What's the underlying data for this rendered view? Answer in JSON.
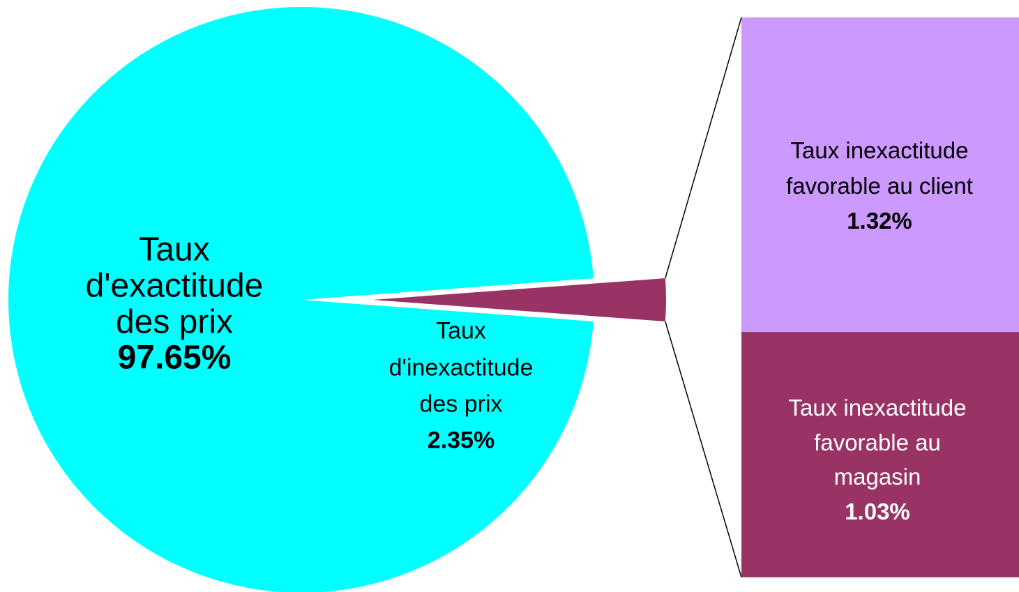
{
  "chart_data": {
    "type": "pie-of-bar",
    "pie": {
      "categories": [
        "Taux d'exactitude des prix",
        "Taux d'inexactitude des prix"
      ],
      "values": [
        97.65,
        2.35
      ],
      "value_labels": [
        "97.65%",
        "2.35%"
      ],
      "colors": [
        "#00ffff",
        "#993366"
      ]
    },
    "bar": {
      "categories": [
        "Taux inexactitude favorable au client",
        "Taux inexactitude favorable au magasin"
      ],
      "values": [
        1.32,
        1.03
      ],
      "value_labels": [
        "1.32%",
        "1.03%"
      ],
      "colors": [
        "#cc99ff",
        "#993366"
      ]
    }
  }
}
